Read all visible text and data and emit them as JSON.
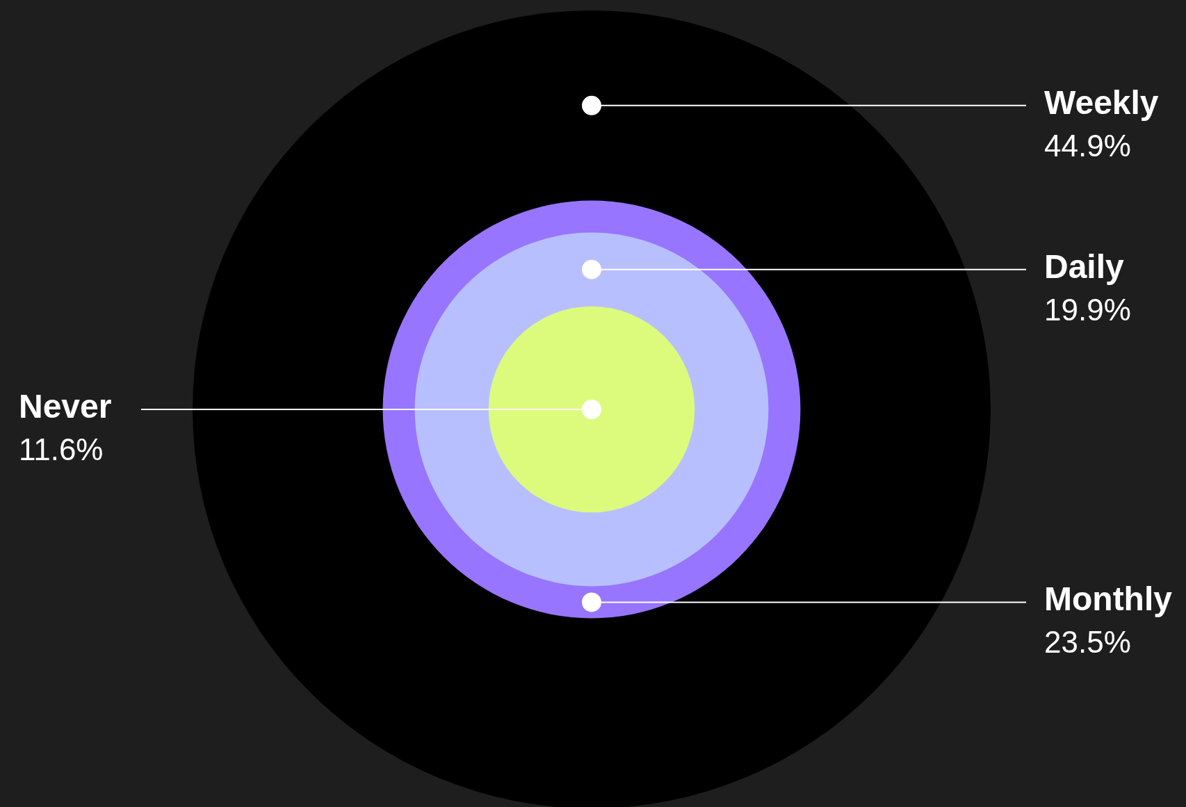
{
  "chart_data": {
    "type": "other",
    "categories": [
      "Weekly",
      "Daily",
      "Never",
      "Monthly"
    ],
    "values": [
      44.9,
      19.9,
      11.6,
      23.5
    ],
    "colors": [
      "#000000",
      "#b8bffe",
      "#dcfb7c",
      "#9775fe"
    ],
    "value_labels": [
      "44.9%",
      "19.9%",
      "11.6%",
      "23.5%"
    ]
  }
}
